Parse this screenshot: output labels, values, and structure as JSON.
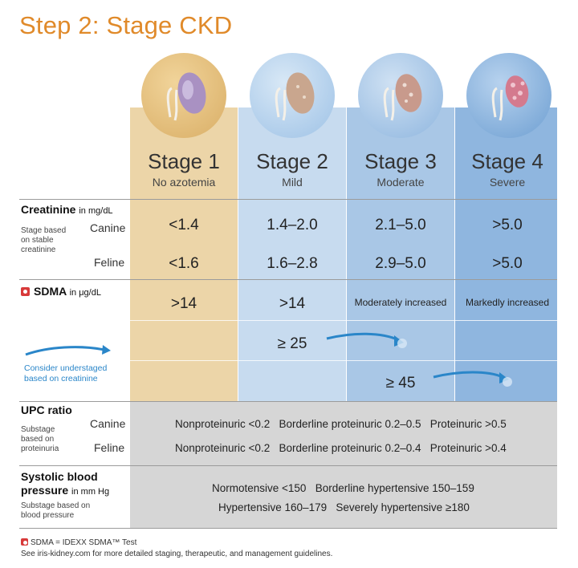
{
  "title": "Step 2: Stage CKD",
  "stages": [
    {
      "name": "Stage 1",
      "sub": "No azotemia"
    },
    {
      "name": "Stage 2",
      "sub": "Mild"
    },
    {
      "name": "Stage 3",
      "sub": "Moderate"
    },
    {
      "name": "Stage 4",
      "sub": "Severe"
    }
  ],
  "creatinine": {
    "label": "Creatinine",
    "unit": "in mg/dL",
    "stage_note": "Stage based on stable creatinine",
    "canine_label": "Canine",
    "feline_label": "Feline",
    "canine": [
      "<1.4",
      "1.4–2.0",
      "2.1–5.0",
      ">5.0"
    ],
    "feline": [
      "<1.6",
      "1.6–2.8",
      "2.9–5.0",
      ">5.0"
    ]
  },
  "sdma": {
    "label": "SDMA",
    "unit": "in μg/dL",
    "values": [
      ">14",
      ">14",
      "Moderately increased",
      "Markedly increased"
    ],
    "upstage_canine": "≥ 25",
    "upstage_feline": "≥ 45",
    "note": "Consider understaged based on creatinine"
  },
  "upc": {
    "label": "UPC ratio",
    "substage_note": "Substage based on proteinuria",
    "canine_label": "Canine",
    "feline_label": "Feline",
    "canine_text": "Nonproteinuric <0.2   Borderline proteinuric 0.2–0.5   Proteinuric >0.5",
    "feline_text": "Nonproteinuric <0.2   Borderline proteinuric 0.2–0.4   Proteinuric >0.4"
  },
  "bp": {
    "label_line1": "Systolic blood",
    "label_line2": "pressure",
    "unit": "in mm Hg",
    "substage_note": "Substage based on blood pressure",
    "line1": "Normotensive <150   Borderline hypertensive 150–159",
    "line2": "Hypertensive 160–179   Severely hypertensive ≥180"
  },
  "footer": {
    "sdma_note": "SDMA = IDEXX SDMA™ Test",
    "see_note": "See iris-kidney.com for more detailed staging, therapeutic, and management guidelines."
  },
  "colors": {
    "title": "#e08a2a",
    "stage1": "#ecd5a8",
    "stage2": "#c7dbef",
    "stage3": "#a9c7e6",
    "stage4": "#8fb6df",
    "arrow": "#2a86c9"
  }
}
